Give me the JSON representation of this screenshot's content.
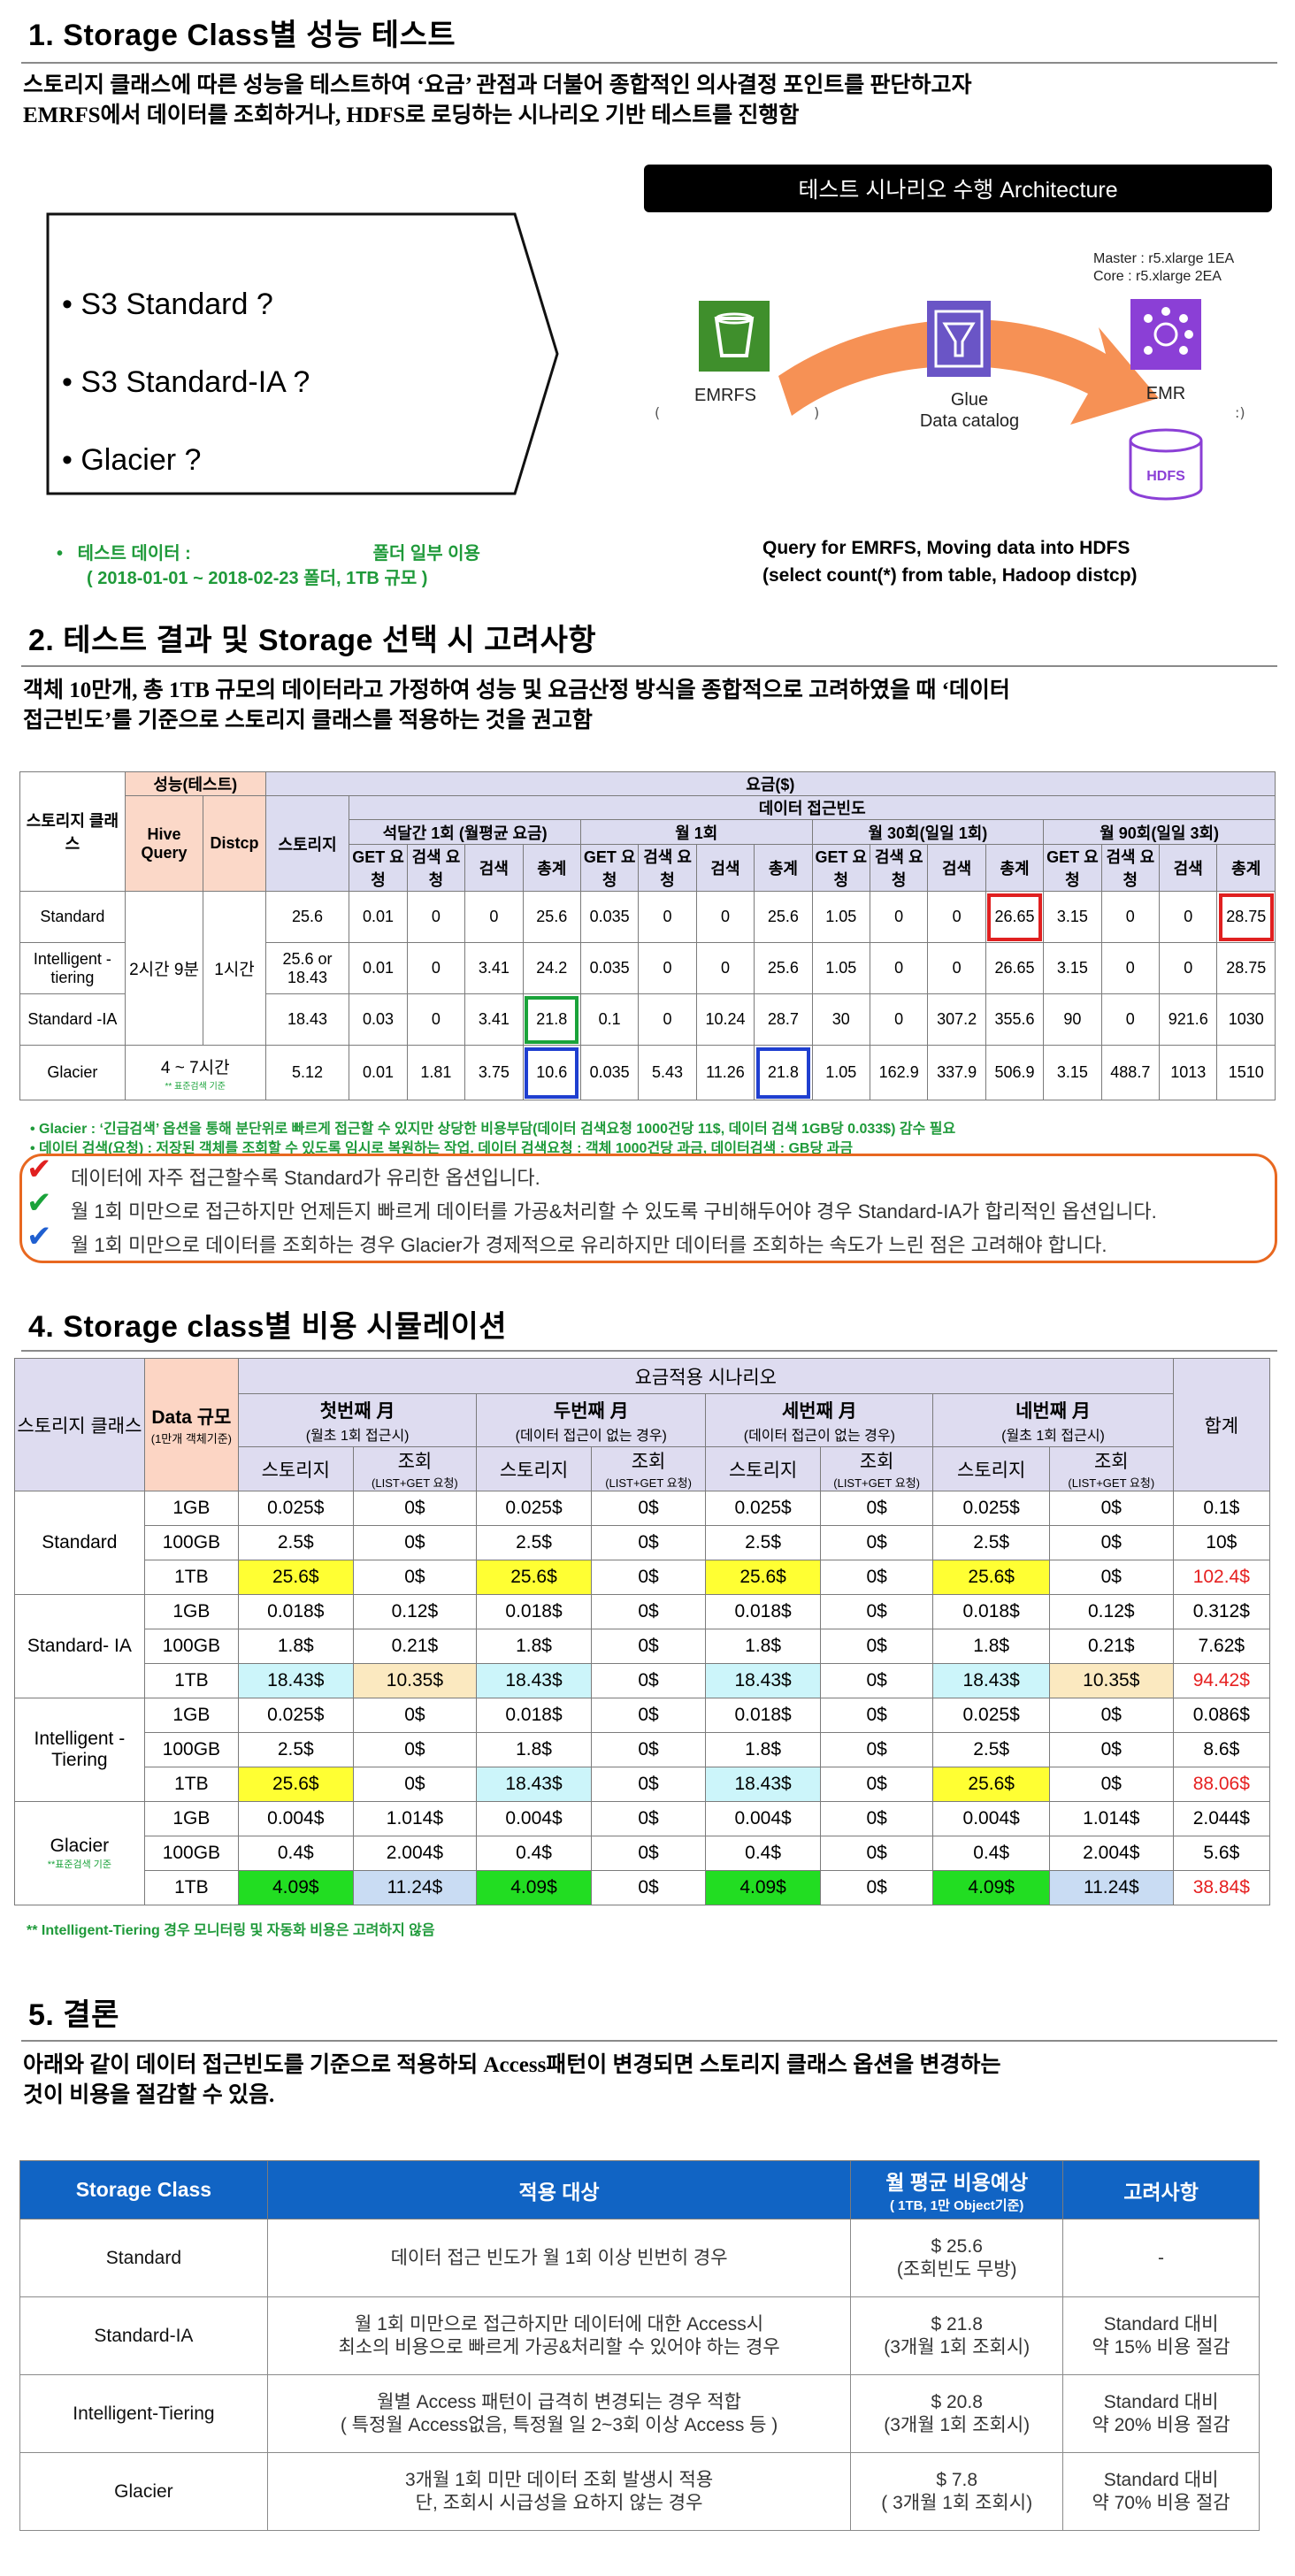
{
  "section1": {
    "title": "1. Storage Class별 성능 테스트",
    "desc1": "스토리지 클래스에 따른 성능을 테스트하여 ‘요금’ 관점과 더불어 종합적인 의사결정 포인트를 판단하고자",
    "desc2": "EMRFS에서 데이터를 조회하거나, HDFS로 로딩하는 시나리오 기반 테스트를 진행함",
    "items": [
      "• S3 Standard ?",
      "• S3 Standard-IA ?",
      "• Glacier ?"
    ],
    "arch_title": "테스트 시나리오 수행 Architecture",
    "master": "Master : r5.xlarge 1EA",
    "core": "Core : r5.xlarge 2EA",
    "emrfs": "EMRFS",
    "glue1": "Glue",
    "glue2": "Data catalog",
    "emr": "EMR",
    "hdfs": "HDFS",
    "test_data1": "•   테스트 데이터 :                                     폴더 일부 이용",
    "test_data2": "( 2018-01-01 ~ 2018-02-23 폴더, 1TB 규모 )",
    "query1": "Query for EMRFS, Moving data into HDFS",
    "query2": "(select count(*) from table, Hadoop distcp)"
  },
  "section2": {
    "title": "2. 테스트 결과 및 Storage 선택 시 고려사항",
    "desc1": "객체 10만개, 총 1TB 규모의 데이터라고 가정하여 성능 및 요금산정 방식을 종합적으로 고려하였을 때 ‘데이터",
    "desc2": "접근빈도’를 기준으로 스토리지 클래스를 적용하는 것을 권고함",
    "h_class": "스토리지 클래스",
    "h_perf": "성능(테스트)",
    "h_fee": "요금($)",
    "h_freq": "데이터 접근빈도",
    "h_hive": "Hive Query",
    "h_distcp": "Distcp",
    "h_storage": "스토리지",
    "periods": [
      "석달간 1회 (월평균 요금)",
      "월 1회",
      "월 30회(일일 1회)",
      "월 90회(일일 3회)"
    ],
    "sub_cols": [
      "GET 요청",
      "검색 요청",
      "검색",
      "총계"
    ],
    "hive_merged": "2시간 9분",
    "distcp_merged": "1시간",
    "glacier_perf": "4 ~ 7시간",
    "glacier_perf_note": "** 표준검색 기준",
    "rows": [
      {
        "cls": "Standard",
        "storage": "25.6",
        "v": [
          "0.01",
          "0",
          "0",
          "25.6",
          "0.035",
          "0",
          "0",
          "25.6",
          "1.05",
          "0",
          "0",
          "26.65",
          "3.15",
          "0",
          "0",
          "28.75"
        ]
      },
      {
        "cls": "Intelligent -tiering",
        "storage": "25.6 or 18.43",
        "v": [
          "0.01",
          "0",
          "3.41",
          "24.2",
          "0.035",
          "0",
          "0",
          "25.6",
          "1.05",
          "0",
          "0",
          "26.65",
          "3.15",
          "0",
          "0",
          "28.75"
        ]
      },
      {
        "cls": "Standard -IA",
        "storage": "18.43",
        "v": [
          "0.03",
          "0",
          "3.41",
          "21.8",
          "0.1",
          "0",
          "10.24",
          "28.7",
          "30",
          "0",
          "307.2",
          "355.6",
          "90",
          "0",
          "921.6",
          "1030"
        ]
      },
      {
        "cls": "Glacier",
        "storage": "5.12",
        "v": [
          "0.01",
          "1.81",
          "3.75",
          "10.6",
          "0.035",
          "5.43",
          "11.26",
          "21.8",
          "1.05",
          "162.9",
          "337.9",
          "506.9",
          "3.15",
          "488.7",
          "1013",
          "1510"
        ]
      }
    ],
    "note1": "•  Glacier : ‘긴급검색’ 옵션을 통해 분단위로 빠르게 접근할 수 있지만 상당한 비용부담(데이터 검색요청 1000건당 11$, 데이터 검색 1GB당 0.033$) 감수 필요",
    "note2": "•  데이터 검색(요청) : 저장된 객체를 조회할 수 있도록 임시로 복원하는 작업. 데이터 검색요청 : 객체 1000건당 과금, 데이터검색 : GB당 과금",
    "callout": [
      "데이터에 자주 접근할수록 Standard가 유리한 옵션입니다.",
      "월 1회 미만으로 접근하지만 언제든지 빠르게 데이터를 가공&처리할 수 있도록 구비해두어야 경우 Standard-IA가 합리적인 옵션입니다.",
      "월 1회 미만으로 데이터를 조회하는 경우 Glacier가 경제적으로 유리하지만 데이터를 조회하는 속도가 느린 점은 고려해야 합니다."
    ],
    "check_colors": [
      "#e02020",
      "#1aa33a",
      "#1f5fd0"
    ]
  },
  "section4": {
    "title": "4. Storage class별 비용 시뮬레이션",
    "h_class": "스토리지 클래스",
    "h_size": "Data 규모",
    "h_size_sub": "(1만개 객체기준)",
    "h_scenario": "요금적용 시나리오",
    "h_total": "합계",
    "months": [
      {
        "m": "첫번째 月",
        "s": "(월초 1회 접근시)"
      },
      {
        "m": "두번째 月",
        "s": "(데이터 접근이 없는 경우)"
      },
      {
        "m": "세번째 月",
        "s": "(데이터 접근이 없는 경우)"
      },
      {
        "m": "네번째 月",
        "s": "(월초 1회 접근시)"
      }
    ],
    "h_storage": "스토리지",
    "h_query": "조회",
    "h_query_sub": "(LIST+GET 요청)",
    "groups": [
      {
        "cls": "Standard",
        "note": "",
        "rows": [
          {
            "size": "1GB",
            "v": [
              "0.025$",
              "0$",
              "0.025$",
              "0$",
              "0.025$",
              "0$",
              "0.025$",
              "0$"
            ],
            "t": "0.1$"
          },
          {
            "size": "100GB",
            "v": [
              "2.5$",
              "0$",
              "2.5$",
              "0$",
              "2.5$",
              "0$",
              "2.5$",
              "0$"
            ],
            "t": "10$"
          },
          {
            "size": "1TB",
            "v": [
              "25.6$",
              "0$",
              "25.6$",
              "0$",
              "25.6$",
              "0$",
              "25.6$",
              "0$"
            ],
            "t": "102.4$"
          }
        ]
      },
      {
        "cls": "Standard- IA",
        "note": "",
        "rows": [
          {
            "size": "1GB",
            "v": [
              "0.018$",
              "0.12$",
              "0.018$",
              "0$",
              "0.018$",
              "0$",
              "0.018$",
              "0.12$"
            ],
            "t": "0.312$"
          },
          {
            "size": "100GB",
            "v": [
              "1.8$",
              "0.21$",
              "1.8$",
              "0$",
              "1.8$",
              "0$",
              "1.8$",
              "0.21$"
            ],
            "t": "7.62$"
          },
          {
            "size": "1TB",
            "v": [
              "18.43$",
              "10.35$",
              "18.43$",
              "0$",
              "18.43$",
              "0$",
              "18.43$",
              "10.35$"
            ],
            "t": "94.42$"
          }
        ]
      },
      {
        "cls": "Intelligent - Tiering",
        "note": "",
        "rows": [
          {
            "size": "1GB",
            "v": [
              "0.025$",
              "0$",
              "0.018$",
              "0$",
              "0.018$",
              "0$",
              "0.025$",
              "0$"
            ],
            "t": "0.086$"
          },
          {
            "size": "100GB",
            "v": [
              "2.5$",
              "0$",
              "1.8$",
              "0$",
              "1.8$",
              "0$",
              "2.5$",
              "0$"
            ],
            "t": "8.6$"
          },
          {
            "size": "1TB",
            "v": [
              "25.6$",
              "0$",
              "18.43$",
              "0$",
              "18.43$",
              "0$",
              "25.6$",
              "0$"
            ],
            "t": "88.06$"
          }
        ]
      },
      {
        "cls": "Glacier",
        "note": "**표준검색 기준",
        "rows": [
          {
            "size": "1GB",
            "v": [
              "0.004$",
              "1.014$",
              "0.004$",
              "0$",
              "0.004$",
              "0$",
              "0.004$",
              "1.014$"
            ],
            "t": "2.044$"
          },
          {
            "size": "100GB",
            "v": [
              "0.4$",
              "2.004$",
              "0.4$",
              "0$",
              "0.4$",
              "0$",
              "0.4$",
              "2.004$"
            ],
            "t": "5.6$"
          },
          {
            "size": "1TB",
            "v": [
              "4.09$",
              "11.24$",
              "4.09$",
              "0$",
              "4.09$",
              "0$",
              "4.09$",
              "11.24$"
            ],
            "t": "38.84$"
          }
        ]
      }
    ],
    "note": "** Intelligent-Tiering 경우 모니터링 및 자동화 비용은 고려하지 않음"
  },
  "section5": {
    "title": "5. 결론",
    "desc1": "아래와 같이 데이터 접근빈도를 기준으로 적용하되 Access패턴이 변경되면 스토리지 클래스 옵션을 변경하는",
    "desc2": "것이 비용을 절감할 수 있음.",
    "h_class": "Storage Class",
    "h_target": "적용 대상",
    "h_cost": "월 평균 비용예상",
    "h_cost_sub": "( 1TB, 1만 Object기준)",
    "h_consider": "고려사항",
    "rows": [
      {
        "cls": "Standard",
        "t1": "데이터 접근 빈도가 월 1회 이상 빈번히 경우",
        "t2": "",
        "c1": "$ 25.6",
        "c2": "(조회빈도 무방)",
        "k1": "-",
        "k2": ""
      },
      {
        "cls": "Standard-IA",
        "t1": "월 1회 미만으로 접근하지만 데이터에 대한 Access시",
        "t2": "최소의 비용으로 빠르게 가공&처리할 수 있어야 하는 경우",
        "c1": "$ 21.8",
        "c2": "(3개월 1회 조회시)",
        "k1": "Standard 대비",
        "k2": "약 15% 비용 절감"
      },
      {
        "cls": "Intelligent-Tiering",
        "t1": "월별 Access 패턴이 급격히 변경되는 경우 적합",
        "t2": "( 특정월 Access없음, 특정월 일 2~3회 이상 Access 등 )",
        "c1": "$ 20.8",
        "c2": "(3개월 1회 조회시)",
        "k1": "Standard 대비",
        "k2": "약 20% 비용 절감"
      },
      {
        "cls": "Glacier",
        "t1": "3개월 1회 미만 데이터 조회 발생시 적용",
        "t2": "단, 조회시 시급성을 요하지 않는 경우",
        "c1": "$ 7.8",
        "c2": "( 3개월 1회 조회시)",
        "k1": "Standard 대비",
        "k2": "약 70% 비용 절감"
      }
    ]
  }
}
